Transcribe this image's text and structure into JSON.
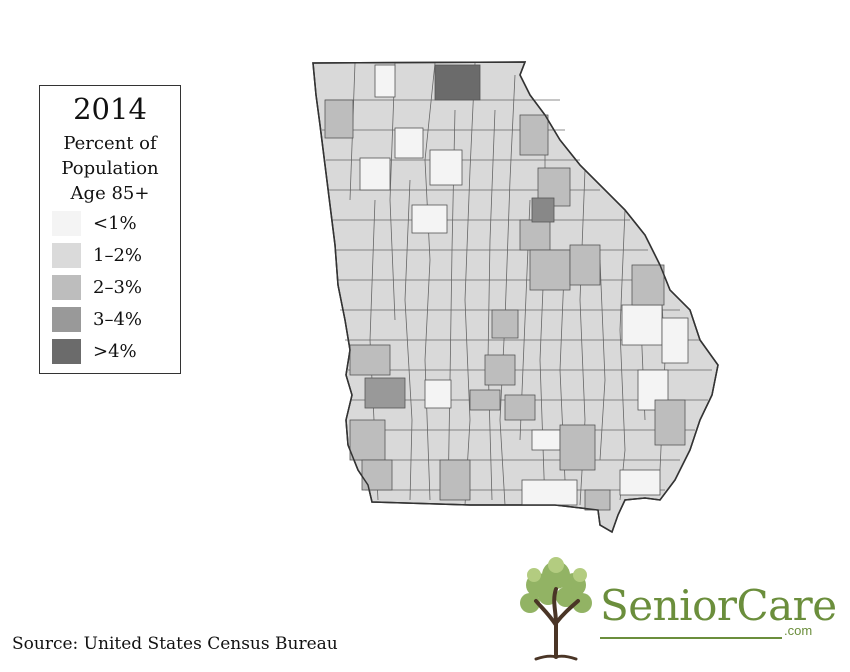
{
  "legend": {
    "year": "2014",
    "subtitle_lines": [
      "Percent of",
      "Population",
      "Age 85+"
    ],
    "items": [
      {
        "label": "<1%",
        "color": "#f4f4f4"
      },
      {
        "label": "1–2%",
        "color": "#dadada"
      },
      {
        "label": "2–3%",
        "color": "#bdbdbd"
      },
      {
        "label": "3–4%",
        "color": "#999999"
      },
      {
        "label": ">4%",
        "color": "#6b6b6b"
      }
    ]
  },
  "map": {
    "region": "Georgia counties",
    "border_color": "#4a4a4a"
  },
  "source": "Source: United States Census Bureau",
  "brand": {
    "name": "SeniorCare",
    "domain": ".com",
    "color": "#6b8e3c"
  }
}
